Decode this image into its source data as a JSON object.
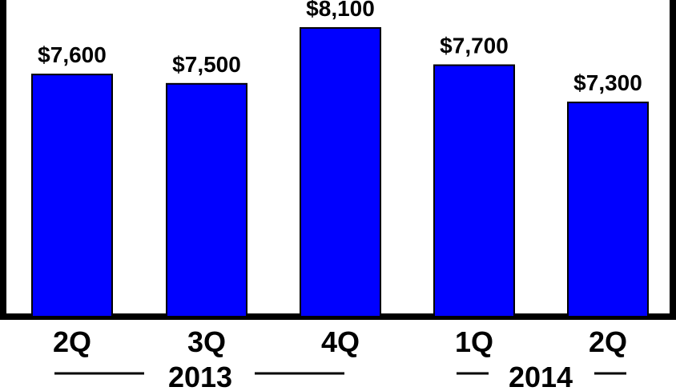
{
  "chart_data": {
    "type": "bar",
    "categories": [
      "2Q",
      "3Q",
      "4Q",
      "1Q",
      "2Q"
    ],
    "values": [
      7600,
      7500,
      8100,
      7700,
      7300
    ],
    "value_labels": [
      "$7,600",
      "$7,500",
      "$8,100",
      "$7,700",
      "$7,300"
    ],
    "groups": [
      {
        "label": "2013",
        "categories": [
          "2Q",
          "3Q",
          "4Q"
        ]
      },
      {
        "label": "2014",
        "categories": [
          "1Q",
          "2Q"
        ]
      }
    ],
    "title": "",
    "xlabel": "",
    "ylabel": "",
    "ylim": [
      5000,
      8400
    ],
    "grid": false,
    "legend": "none",
    "colors": {
      "bar": "#0000ff",
      "frame": "#000000",
      "text": "#000000"
    }
  }
}
